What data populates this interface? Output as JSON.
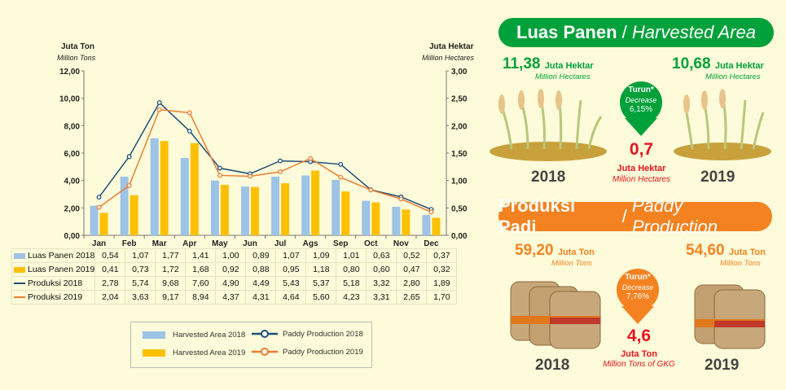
{
  "chart_data": {
    "type": "bar+line",
    "left_axis": {
      "title": "Juta Ton",
      "subtitle": "Million Tons",
      "range": [
        0,
        12
      ],
      "ticks": [
        "0,00",
        "2,00",
        "4,00",
        "6,00",
        "8,00",
        "10,00",
        "12,00"
      ]
    },
    "right_axis": {
      "title": "Juta Hektar",
      "subtitle": "Million Hectares",
      "range": [
        0,
        3
      ],
      "ticks": [
        "0,00",
        "0,50",
        "1,00",
        "1,50",
        "2,00",
        "2,50",
        "3,00"
      ]
    },
    "categories": [
      "Jan",
      "Feb",
      "Mar",
      "Apr",
      "May",
      "Jun",
      "Jul",
      "Ags",
      "Sep",
      "Oct",
      "Nov",
      "Dec"
    ],
    "series": [
      {
        "name": "Luas Panen 2018",
        "legend": "Harvested Area 2018",
        "type": "bar",
        "axis": "right",
        "color": "#9dc3e6",
        "values": [
          0.54,
          1.07,
          1.77,
          1.41,
          1.0,
          0.89,
          1.07,
          1.09,
          1.01,
          0.63,
          0.52,
          0.37
        ],
        "labels": [
          "0,54",
          "1,07",
          "1,77",
          "1,41",
          "1,00",
          "0,89",
          "1,07",
          "1,09",
          "1,01",
          "0,63",
          "0,52",
          "0,37"
        ]
      },
      {
        "name": "Luas Panen 2019",
        "legend": "Harvested Area 2019",
        "type": "bar",
        "axis": "right",
        "color": "#ffc000",
        "values": [
          0.41,
          0.73,
          1.72,
          1.68,
          0.92,
          0.88,
          0.95,
          1.18,
          0.8,
          0.6,
          0.47,
          0.32
        ],
        "labels": [
          "0,41",
          "0,73",
          "1,72",
          "1,68",
          "0,92",
          "0,88",
          "0,95",
          "1,18",
          "0,80",
          "0,60",
          "0,47",
          "0,32"
        ]
      },
      {
        "name": "Produksi 2018",
        "legend": "Paddy Production 2018",
        "type": "line",
        "axis": "left",
        "color": "#1f4e79",
        "values": [
          2.78,
          5.74,
          9.68,
          7.6,
          4.9,
          4.49,
          5.43,
          5.37,
          5.18,
          3.32,
          2.8,
          1.89
        ],
        "labels": [
          "2,78",
          "5,74",
          "9,68",
          "7,60",
          "4,90",
          "4,49",
          "5,43",
          "5,37",
          "5,18",
          "3,32",
          "2,80",
          "1,89"
        ]
      },
      {
        "name": "Produksi 2019",
        "legend": "Paddy Production 2019",
        "type": "line",
        "axis": "left",
        "color": "#ed7d31",
        "values": [
          2.04,
          3.63,
          9.17,
          8.94,
          4.37,
          4.31,
          4.64,
          5.6,
          4.23,
          3.31,
          2.65,
          1.7
        ],
        "labels": [
          "2,04",
          "3,63",
          "9,17",
          "8,94",
          "4,37",
          "4,31",
          "4,64",
          "5,60",
          "4,23",
          "3,31",
          "2,65",
          "1,70"
        ]
      }
    ],
    "legend_placement": "bottom"
  },
  "harvest": {
    "title": "Luas Panen",
    "title_en": "Harvested Area",
    "v2018": "11,38",
    "v2019": "10,68",
    "unit": "Juta Hektar",
    "unit_en": "Million Hectares",
    "turun": "Turun*",
    "decrease": "Decrease",
    "pct": "6,15%",
    "diff": "0,7",
    "diff_unit": "Juta Hektar",
    "diff_unit_en": "Million Hectares",
    "y2018": "2018",
    "y2019": "2019",
    "color": "#00a13a"
  },
  "production": {
    "title": "Produksi Padi",
    "title_en": "Paddy Production",
    "v2018": "59,20",
    "v2019": "54,60",
    "unit": "Juta Ton",
    "unit_en": "Million Tons",
    "turun": "Turun*",
    "decrease": "Decrease",
    "pct": "7,76%",
    "diff": "4,6",
    "diff_unit": "Juta Ton",
    "diff_unit_en": "Million Tons of GKG",
    "y2018": "2018",
    "y2019": "2019",
    "color": "#f58220"
  },
  "sep": "/"
}
